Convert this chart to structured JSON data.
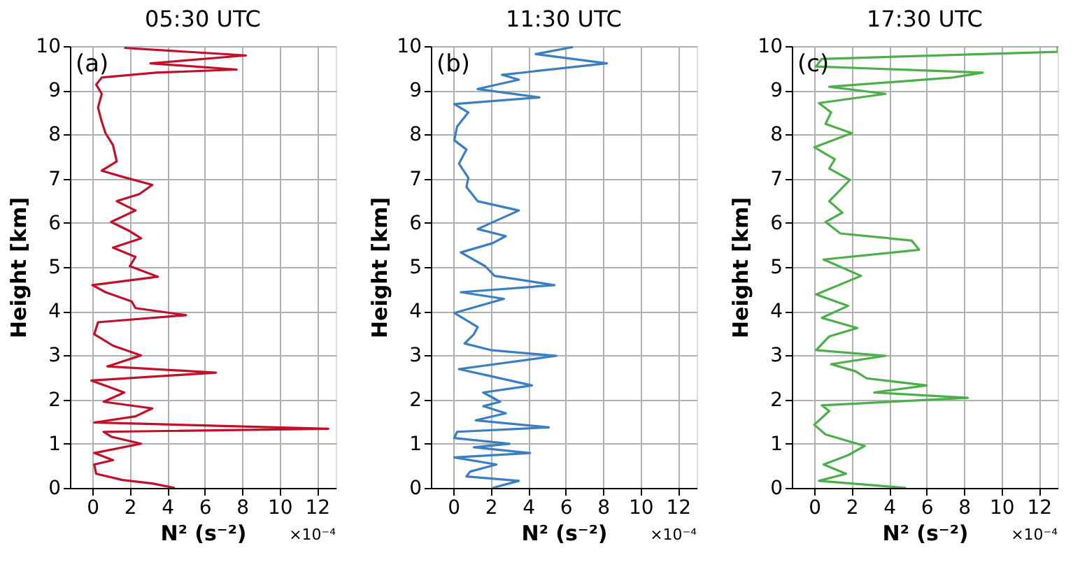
{
  "chart_data": [
    {
      "type": "line",
      "title": "05:30 UTC",
      "xlabel": "N² (s⁻²)",
      "ylabel": "Height [km]",
      "xlim": [
        -1.2,
        13
      ],
      "ylim": [
        0,
        10
      ],
      "xticks": [
        0,
        2,
        4,
        6,
        8,
        10,
        12
      ],
      "yticks": [
        0,
        1,
        2,
        3,
        4,
        5,
        6,
        7,
        8,
        9,
        10
      ],
      "grid": true,
      "annotations": [
        "(a)",
        "×10⁻⁴"
      ],
      "series": [
        {
          "color": "#c0102a",
          "x": [
            4.4,
            3.2,
            1.6,
            0.2,
            0.1,
            1.1,
            0.1,
            2.6,
            1.0,
            0.6,
            12.6,
            0.1,
            2.3,
            3.2,
            0.6,
            1.7,
            -0.05,
            6.6,
            0.8,
            2.6,
            1.1,
            0.1,
            0.3,
            5.0,
            2.3,
            2.1,
            0.7,
            0,
            3.5,
            2.0,
            2.3,
            1.1,
            2.6,
            2.0,
            1.0,
            2.3,
            1.3,
            2.5,
            3.2,
            1.8,
            0.5,
            1.3,
            1.1,
            0.7,
            0.5,
            0.3,
            0.5,
            0.2,
            0.5,
            3.4,
            7.7,
            3.1,
            8.2,
            1.7
          ],
          "values": [
            0,
            0.1,
            0.18,
            0.32,
            0.53,
            0.63,
            0.79,
            1.0,
            1.16,
            1.27,
            1.34,
            1.48,
            1.62,
            1.8,
            1.95,
            2.16,
            2.43,
            2.61,
            2.75,
            3.0,
            3.22,
            3.48,
            3.75,
            3.91,
            4.07,
            4.22,
            4.43,
            4.59,
            4.78,
            5.02,
            5.23,
            5.44,
            5.65,
            5.81,
            6.02,
            6.28,
            6.49,
            6.65,
            6.86,
            7.02,
            7.18,
            7.39,
            7.76,
            8.03,
            8.29,
            8.61,
            8.92,
            9.13,
            9.29,
            9.4,
            9.47,
            9.61,
            9.79,
            9.96
          ]
        }
      ]
    },
    {
      "type": "line",
      "title": "11:30 UTC",
      "xlabel": "N² (s⁻²)",
      "ylabel": "Height [km]",
      "xlim": [
        -1.2,
        13
      ],
      "ylim": [
        0,
        10
      ],
      "xticks": [
        0,
        2,
        4,
        6,
        8,
        10,
        12
      ],
      "yticks": [
        0,
        1,
        2,
        3,
        4,
        5,
        6,
        7,
        8,
        9,
        10
      ],
      "grid": true,
      "annotations": [
        "(b)",
        "×10⁻⁴"
      ],
      "series": [
        {
          "color": "#3a7fc1",
          "x": [
            2.1,
            3.5,
            0.7,
            0.9,
            2.3,
            0.05,
            4.1,
            1.1,
            3.0,
            0.05,
            0.2,
            5.1,
            1.2,
            2.8,
            1.6,
            2.5,
            1.6,
            4.2,
            2.0,
            0.3,
            5.5,
            2.0,
            0.6,
            1.1,
            1.3,
            0.05,
            2.7,
            0.4,
            5.4,
            2.2,
            1.7,
            0.4,
            2.1,
            2.8,
            1.3,
            3.5,
            1.3,
            0.7,
            0.8,
            0.3,
            0.7,
            0.05,
            0.2,
            0.8,
            0.05,
            4.6,
            1.3,
            3.5,
            2.6,
            8.2,
            4.4,
            6.4
          ],
          "values": [
            0,
            0.16,
            0.26,
            0.37,
            0.53,
            0.69,
            0.79,
            0.92,
            1.0,
            1.13,
            1.27,
            1.37,
            1.53,
            1.69,
            1.85,
            1.95,
            2.16,
            2.32,
            2.53,
            2.69,
            2.99,
            3.12,
            3.27,
            3.48,
            3.64,
            3.96,
            4.28,
            4.43,
            4.59,
            4.8,
            5.02,
            5.33,
            5.54,
            5.7,
            5.86,
            6.28,
            6.49,
            6.81,
            7.02,
            7.34,
            7.66,
            7.87,
            8.18,
            8.5,
            8.69,
            8.84,
            9.03,
            9.24,
            9.35,
            9.61,
            9.82,
            9.98
          ]
        }
      ]
    },
    {
      "type": "line",
      "title": "17:30 UTC",
      "xlabel": "N² (s⁻²)",
      "ylabel": "Height [km]",
      "xlim": [
        -1.2,
        13
      ],
      "ylim": [
        0,
        10
      ],
      "xticks": [
        0,
        2,
        4,
        6,
        8,
        10,
        12
      ],
      "yticks": [
        0,
        1,
        2,
        3,
        4,
        5,
        6,
        7,
        8,
        9,
        10
      ],
      "grid": true,
      "annotations": [
        "(c)",
        "×10⁻⁴"
      ],
      "series": [
        {
          "color": "#4daf4a",
          "x": [
            4.9,
            0.25,
            1.7,
            0.5,
            1.8,
            2.7,
            0.6,
            0,
            0.8,
            0.4,
            8.2,
            3.2,
            6.0,
            2.8,
            2.2,
            0.9,
            3.8,
            0.1,
            0.8,
            2.3,
            0.4,
            1.8,
            0.1,
            2.5,
            0.5,
            5.6,
            5.2,
            1.4,
            0.6,
            1.5,
            0.8,
            1.9,
            0.8,
            1.1,
            0,
            2.0,
            0.6,
            0.9,
            0.25,
            3.8,
            0.8,
            7.4,
            9.0,
            0.1,
            0.4,
            13,
            13
          ],
          "values": [
            0,
            0.16,
            0.32,
            0.53,
            0.74,
            0.95,
            1.21,
            1.43,
            1.74,
            1.87,
            2.04,
            2.16,
            2.32,
            2.48,
            2.64,
            2.8,
            2.99,
            3.12,
            3.43,
            3.62,
            3.85,
            4.12,
            4.38,
            4.8,
            5.17,
            5.39,
            5.6,
            5.76,
            6.02,
            6.23,
            6.49,
            6.97,
            7.23,
            7.44,
            7.71,
            8.03,
            8.24,
            8.5,
            8.71,
            8.92,
            9.08,
            9.29,
            9.4,
            9.54,
            9.71,
            9.87,
            10
          ]
        }
      ]
    }
  ]
}
